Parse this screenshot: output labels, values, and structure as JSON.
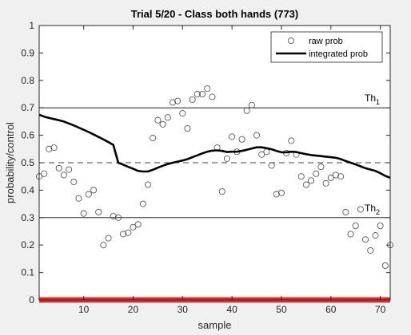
{
  "chart_data": {
    "type": "scatter",
    "title": "Trial 5/20 - Class both hands (773)",
    "xlabel": "sample",
    "ylabel": "probability/control",
    "xlim": [
      1,
      72
    ],
    "ylim": [
      0,
      1
    ],
    "xticks": [
      10,
      20,
      30,
      40,
      50,
      60,
      70
    ],
    "yticks": [
      0,
      0.1,
      0.2,
      0.3,
      0.4,
      0.5,
      0.6,
      0.7,
      0.8,
      0.9,
      1
    ],
    "legend": {
      "position": "top-right",
      "entries": [
        "raw prob",
        "integrated prob"
      ]
    },
    "thresholds": [
      {
        "label": "Th",
        "sub": "1",
        "y": 0.7,
        "style": "solid"
      },
      {
        "label": "Th",
        "sub": "2",
        "y": 0.3,
        "style": "solid"
      }
    ],
    "reference_line": {
      "y": 0.5,
      "style": "dashed"
    },
    "baseline": {
      "y": 0,
      "color": "#e03030"
    },
    "series": [
      {
        "name": "raw prob",
        "marker": "circle",
        "x": [
          1,
          2,
          3,
          4,
          5,
          6,
          7,
          8,
          9,
          10,
          11,
          12,
          13,
          14,
          15,
          16,
          17,
          18,
          19,
          20,
          21,
          22,
          23,
          24,
          25,
          26,
          27,
          28,
          29,
          30,
          31,
          32,
          33,
          34,
          35,
          36,
          37,
          38,
          39,
          40,
          41,
          42,
          43,
          44,
          45,
          46,
          47,
          48,
          49,
          50,
          51,
          52,
          53,
          54,
          55,
          56,
          57,
          58,
          59,
          60,
          61,
          62,
          63,
          64,
          65,
          66,
          67,
          68,
          69,
          70,
          71,
          72
        ],
        "y": [
          0.45,
          0.46,
          0.55,
          0.555,
          0.48,
          0.455,
          0.475,
          0.43,
          0.37,
          0.315,
          0.385,
          0.4,
          0.32,
          0.2,
          0.225,
          0.305,
          0.3,
          0.24,
          0.245,
          0.265,
          0.275,
          0.35,
          0.42,
          0.59,
          0.655,
          0.64,
          0.665,
          0.72,
          0.725,
          0.68,
          0.625,
          0.73,
          0.75,
          0.75,
          0.77,
          0.74,
          0.555,
          0.395,
          0.515,
          0.595,
          0.54,
          0.585,
          0.69,
          0.71,
          0.6,
          0.53,
          0.54,
          0.49,
          0.385,
          0.39,
          0.535,
          0.58,
          0.53,
          0.45,
          0.42,
          0.435,
          0.46,
          0.485,
          0.425,
          0.445,
          0.455,
          0.45,
          0.32,
          0.24,
          0.27,
          0.33,
          0.22,
          0.18,
          0.235,
          0.27,
          0.125,
          0.2
        ]
      },
      {
        "name": "integrated prob",
        "line": "solid",
        "x": [
          1,
          2,
          3,
          4,
          5,
          6,
          7,
          8,
          9,
          10,
          11,
          12,
          13,
          14,
          15,
          16,
          17,
          18,
          19,
          20,
          21,
          22,
          23,
          24,
          25,
          26,
          27,
          28,
          29,
          30,
          31,
          32,
          33,
          34,
          35,
          36,
          37,
          38,
          39,
          40,
          41,
          42,
          43,
          44,
          45,
          46,
          47,
          48,
          49,
          50,
          51,
          52,
          53,
          54,
          55,
          56,
          57,
          58,
          59,
          60,
          61,
          62,
          63,
          64,
          65,
          66,
          67,
          68,
          69,
          70,
          71,
          72
        ],
        "y": [
          0.675,
          0.668,
          0.663,
          0.659,
          0.655,
          0.65,
          0.643,
          0.636,
          0.628,
          0.62,
          0.612,
          0.603,
          0.594,
          0.585,
          0.575,
          0.565,
          0.5,
          0.493,
          0.485,
          0.478,
          0.47,
          0.468,
          0.468,
          0.474,
          0.482,
          0.489,
          0.495,
          0.5,
          0.504,
          0.508,
          0.513,
          0.52,
          0.527,
          0.534,
          0.54,
          0.544,
          0.545,
          0.543,
          0.539,
          0.54,
          0.54,
          0.543,
          0.547,
          0.552,
          0.556,
          0.556,
          0.553,
          0.549,
          0.543,
          0.538,
          0.538,
          0.54,
          0.539,
          0.535,
          0.531,
          0.528,
          0.526,
          0.524,
          0.522,
          0.52,
          0.518,
          0.513,
          0.506,
          0.5,
          0.494,
          0.487,
          0.48,
          0.475,
          0.47,
          0.462,
          0.452,
          0.445
        ]
      }
    ]
  }
}
